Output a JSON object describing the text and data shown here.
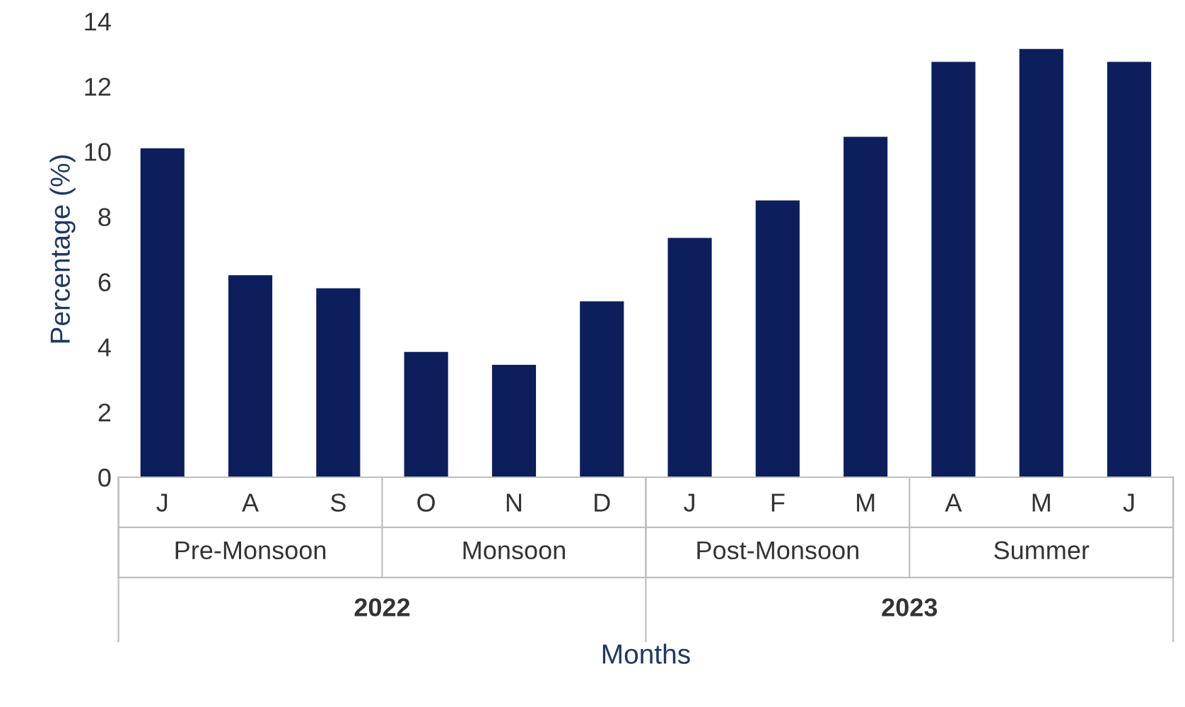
{
  "chart_data": {
    "type": "bar",
    "xlabel": "Months",
    "ylabel": "Percentage (%)",
    "categories": [
      "J",
      "A",
      "S",
      "O",
      "N",
      "D",
      "J",
      "F",
      "M",
      "A",
      "M",
      "J"
    ],
    "values": [
      10.1,
      6.2,
      5.8,
      3.85,
      3.45,
      5.4,
      7.35,
      8.5,
      10.45,
      12.75,
      13.15,
      12.75
    ],
    "color": "#0c1f5c",
    "ylim": [
      0,
      14
    ],
    "yticks": [
      0,
      2,
      4,
      6,
      8,
      10,
      12,
      14
    ],
    "grid": false,
    "annotations": [
      "Pre-Monsoon",
      "Monsoon",
      "Post-Monsoon",
      "Summer",
      "2022",
      "2023"
    ]
  }
}
